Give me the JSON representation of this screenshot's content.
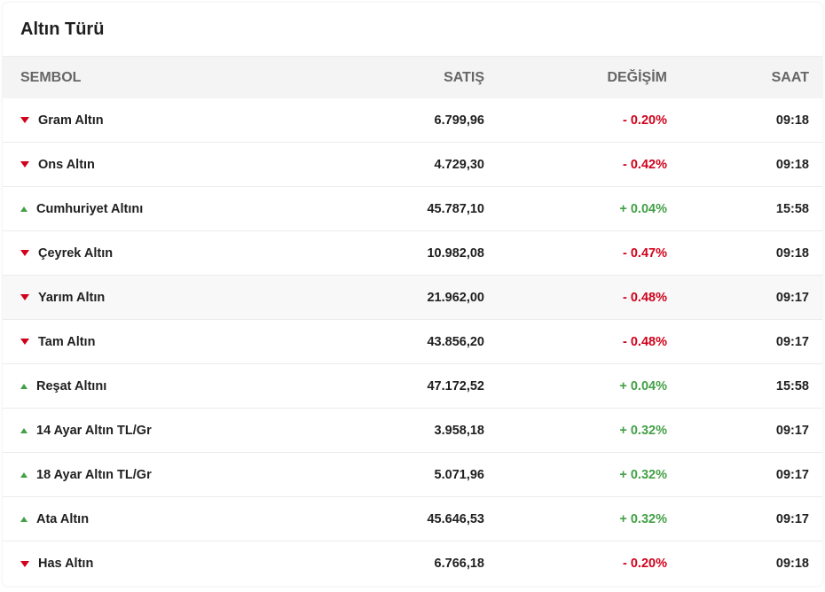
{
  "title": "Altın Türü",
  "columns": {
    "symbol": "SEMBOL",
    "sell": "SATIŞ",
    "change": "DEĞİŞİM",
    "time": "SAAT"
  },
  "colors": {
    "negative": "#d0021b",
    "positive": "#43a047"
  },
  "rows": [
    {
      "name": "Gram Altın",
      "sell": "6.799,96",
      "change": "- 0.20%",
      "time": "09:18",
      "direction": "down"
    },
    {
      "name": "Ons Altın",
      "sell": "4.729,30",
      "change": "- 0.42%",
      "time": "09:18",
      "direction": "down"
    },
    {
      "name": "Cumhuriyet Altını",
      "sell": "45.787,10",
      "change": "+ 0.04%",
      "time": "15:58",
      "direction": "up"
    },
    {
      "name": "Çeyrek Altın",
      "sell": "10.982,08",
      "change": "- 0.47%",
      "time": "09:18",
      "direction": "down"
    },
    {
      "name": "Yarım Altın",
      "sell": "21.962,00",
      "change": "- 0.48%",
      "time": "09:17",
      "direction": "down"
    },
    {
      "name": "Tam Altın",
      "sell": "43.856,20",
      "change": "- 0.48%",
      "time": "09:17",
      "direction": "down"
    },
    {
      "name": "Reşat Altını",
      "sell": "47.172,52",
      "change": "+ 0.04%",
      "time": "15:58",
      "direction": "up"
    },
    {
      "name": "14 Ayar Altın TL/Gr",
      "sell": "3.958,18",
      "change": "+ 0.32%",
      "time": "09:17",
      "direction": "up"
    },
    {
      "name": "18 Ayar Altın TL/Gr",
      "sell": "5.071,96",
      "change": "+ 0.32%",
      "time": "09:17",
      "direction": "up"
    },
    {
      "name": "Ata Altın",
      "sell": "45.646,53",
      "change": "+ 0.32%",
      "time": "09:17",
      "direction": "up"
    },
    {
      "name": "Has Altın",
      "sell": "6.766,18",
      "change": "- 0.20%",
      "time": "09:18",
      "direction": "down"
    }
  ]
}
